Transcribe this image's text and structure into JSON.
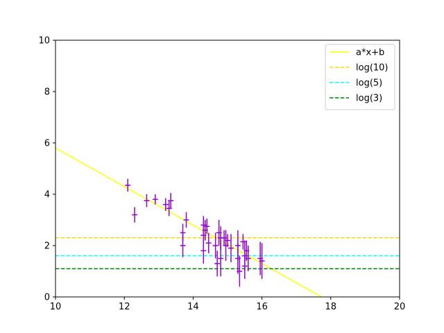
{
  "chart_data": {
    "type": "scatter",
    "title": "",
    "xlabel": "",
    "ylabel": "",
    "xlim": [
      10,
      20
    ],
    "ylim": [
      0,
      10
    ],
    "xticks": [
      "10",
      "12",
      "14",
      "16",
      "18",
      "20"
    ],
    "yticks": [
      "0",
      "2",
      "4",
      "6",
      "8",
      "10"
    ],
    "grid": false,
    "legend_position": "top-right",
    "lines": [
      {
        "name": "a*x+b",
        "kind": "fit",
        "slope": -0.75,
        "intercept": 13.3,
        "color": "#ffff00",
        "dash": "solid"
      },
      {
        "name": "log(10)",
        "kind": "hline",
        "y": 2.302585,
        "color": "#ffd700",
        "dash": "dashed"
      },
      {
        "name": "log(5)",
        "kind": "hline",
        "y": 1.609438,
        "color": "#00ffff",
        "dash": "dashed"
      },
      {
        "name": "log(3)",
        "kind": "hline",
        "y": 1.098612,
        "color": "#008000",
        "dash": "dashed"
      }
    ],
    "points_color": "#9400d3",
    "points": [
      {
        "x": 12.1,
        "y": 4.35,
        "xerr": 0.08,
        "yerr": 0.25
      },
      {
        "x": 12.3,
        "y": 3.2,
        "xerr": 0.08,
        "yerr": 0.3
      },
      {
        "x": 12.65,
        "y": 3.75,
        "xerr": 0.08,
        "yerr": 0.25
      },
      {
        "x": 12.9,
        "y": 3.8,
        "xerr": 0.08,
        "yerr": 0.2
      },
      {
        "x": 13.2,
        "y": 3.6,
        "xerr": 0.08,
        "yerr": 0.25
      },
      {
        "x": 13.3,
        "y": 3.45,
        "xerr": 0.08,
        "yerr": 0.3
      },
      {
        "x": 13.35,
        "y": 3.75,
        "xerr": 0.08,
        "yerr": 0.3
      },
      {
        "x": 13.7,
        "y": 2.5,
        "xerr": 0.08,
        "yerr": 0.35
      },
      {
        "x": 13.7,
        "y": 2.0,
        "xerr": 0.08,
        "yerr": 0.45
      },
      {
        "x": 13.8,
        "y": 3.0,
        "xerr": 0.08,
        "yerr": 0.3
      },
      {
        "x": 14.3,
        "y": 2.8,
        "xerr": 0.08,
        "yerr": 0.35
      },
      {
        "x": 14.3,
        "y": 2.4,
        "xerr": 0.08,
        "yerr": 0.4
      },
      {
        "x": 14.3,
        "y": 1.8,
        "xerr": 0.08,
        "yerr": 0.5
      },
      {
        "x": 14.35,
        "y": 2.6,
        "xerr": 0.08,
        "yerr": 0.4
      },
      {
        "x": 14.4,
        "y": 2.75,
        "xerr": 0.08,
        "yerr": 0.3
      },
      {
        "x": 14.45,
        "y": 2.1,
        "xerr": 0.08,
        "yerr": 0.4
      },
      {
        "x": 14.65,
        "y": 2.0,
        "xerr": 0.08,
        "yerr": 0.5
      },
      {
        "x": 14.7,
        "y": 1.3,
        "xerr": 0.08,
        "yerr": 0.5
      },
      {
        "x": 14.75,
        "y": 2.5,
        "xerr": 0.08,
        "yerr": 0.5
      },
      {
        "x": 14.8,
        "y": 2.3,
        "xerr": 0.08,
        "yerr": 0.45
      },
      {
        "x": 14.8,
        "y": 1.5,
        "xerr": 0.08,
        "yerr": 0.7
      },
      {
        "x": 14.9,
        "y": 2.3,
        "xerr": 0.08,
        "yerr": 0.3
      },
      {
        "x": 14.95,
        "y": 2.0,
        "xerr": 0.08,
        "yerr": 0.6
      },
      {
        "x": 15.0,
        "y": 2.2,
        "xerr": 0.08,
        "yerr": 0.25
      },
      {
        "x": 15.1,
        "y": 1.9,
        "xerr": 0.08,
        "yerr": 0.55
      },
      {
        "x": 15.3,
        "y": 2.0,
        "xerr": 0.08,
        "yerr": 0.6
      },
      {
        "x": 15.3,
        "y": 1.5,
        "xerr": 0.08,
        "yerr": 0.6
      },
      {
        "x": 15.35,
        "y": 1.0,
        "xerr": 0.08,
        "yerr": 0.6
      },
      {
        "x": 15.45,
        "y": 2.15,
        "xerr": 0.08,
        "yerr": 0.3
      },
      {
        "x": 15.5,
        "y": 1.6,
        "xerr": 0.08,
        "yerr": 0.6
      },
      {
        "x": 15.5,
        "y": 1.2,
        "xerr": 0.08,
        "yerr": 0.5
      },
      {
        "x": 15.55,
        "y": 1.8,
        "xerr": 0.08,
        "yerr": 0.4
      },
      {
        "x": 15.6,
        "y": 1.5,
        "xerr": 0.08,
        "yerr": 0.5
      },
      {
        "x": 15.95,
        "y": 1.5,
        "xerr": 0.08,
        "yerr": 0.65
      },
      {
        "x": 16.0,
        "y": 1.4,
        "xerr": 0.08,
        "yerr": 0.7
      }
    ]
  }
}
